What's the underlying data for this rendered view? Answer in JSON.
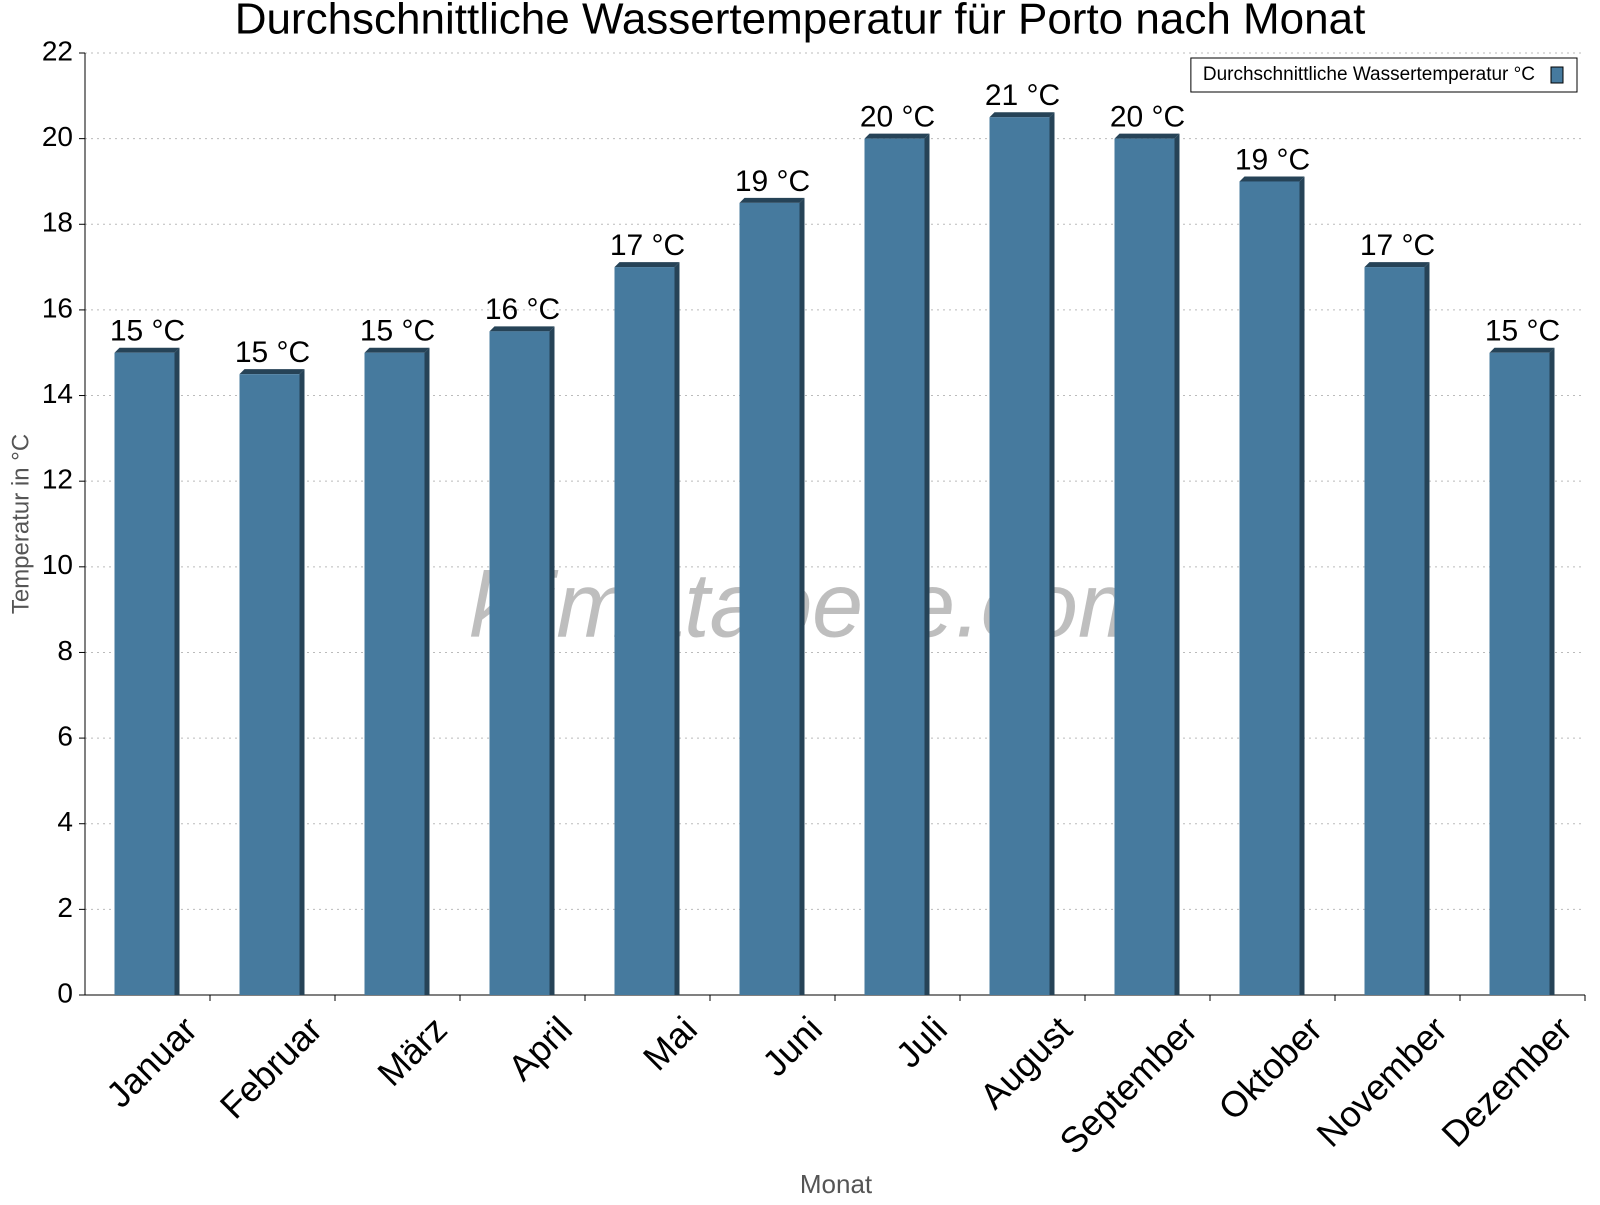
{
  "chart_data": {
    "type": "bar",
    "title": "Durchschnittliche Wassertemperatur für Porto nach Monat",
    "x_label": "Monat",
    "y_label": "Temperatur in °C",
    "watermark": "klimatabelle.com",
    "categories": [
      "Januar",
      "Februar",
      "März",
      "April",
      "Mai",
      "Juni",
      "Juli",
      "August",
      "September",
      "Oktober",
      "November",
      "Dezember"
    ],
    "series": [
      {
        "name": "Durchschnittliche Wassertemperatur °C",
        "color": "#467a9e",
        "values": [
          15,
          14.5,
          15,
          15.5,
          17,
          18.5,
          20,
          20.5,
          20,
          19,
          17,
          15
        ],
        "value_labels": [
          "15 °C",
          "15 °C",
          "15 °C",
          "16 °C",
          "17 °C",
          "19 °C",
          "20 °C",
          "21 °C",
          "20 °C",
          "19 °C",
          "17 °C",
          "15 °C"
        ]
      }
    ],
    "ylim": [
      0,
      22
    ],
    "yticks": [
      0,
      2,
      4,
      6,
      8,
      10,
      12,
      14,
      16,
      18,
      20,
      22
    ],
    "grid": true,
    "legend": "top-right"
  }
}
